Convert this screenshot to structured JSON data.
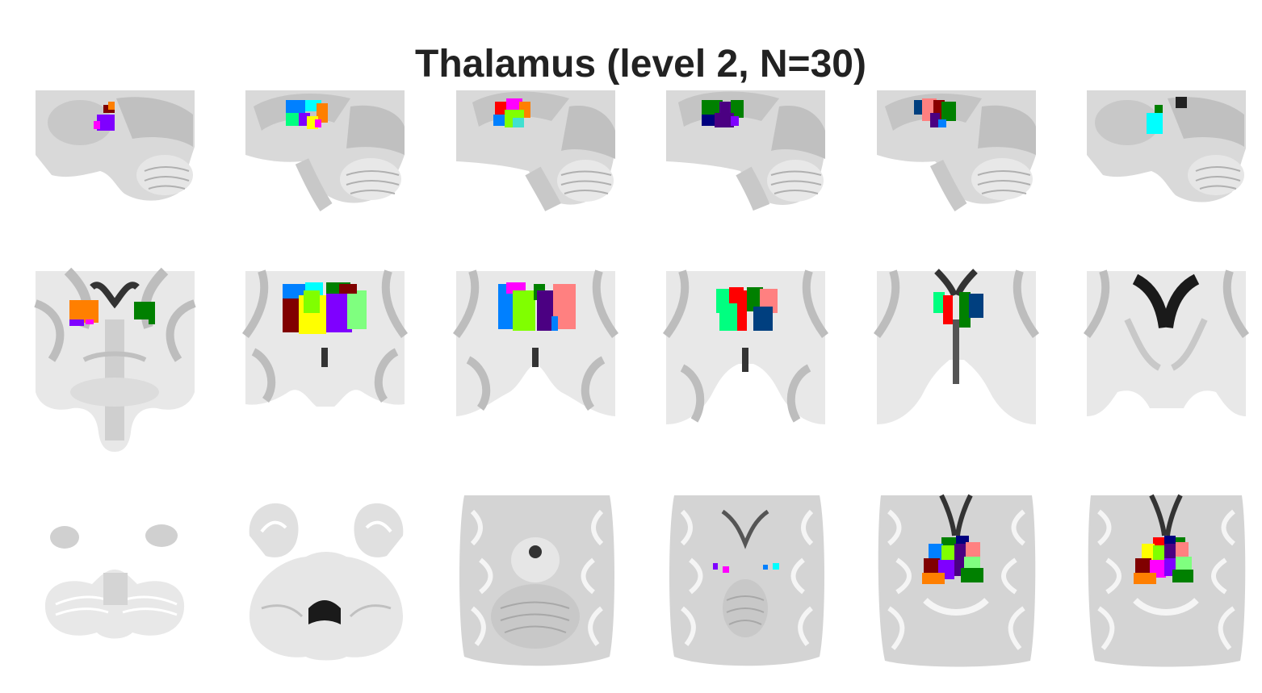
{
  "figure": {
    "title": "Thalamus (level 2, N=30)",
    "rows": [
      {
        "view": "sagittal",
        "count": 6
      },
      {
        "view": "coronal",
        "count": 6
      },
      {
        "view": "axial",
        "count": 6
      }
    ],
    "parcel_colors": [
      "#800000",
      "#ff7f00",
      "#7f00ff",
      "#ff00ff",
      "#0080ff",
      "#00ffff",
      "#ffff00",
      "#80ff00",
      "#00ff80",
      "#008000",
      "#00007f",
      "#003f7f",
      "#ff0000",
      "#ff8080",
      "#4b0082",
      "#40e0d0",
      "#7fff7f",
      "#8b0000"
    ],
    "brain_colors": {
      "background_tissue": "#d9d9d9",
      "white_matter": "#f2f2f2",
      "gray_matter": "#b5b5b5",
      "ventricle": "#1a1a1a"
    }
  }
}
